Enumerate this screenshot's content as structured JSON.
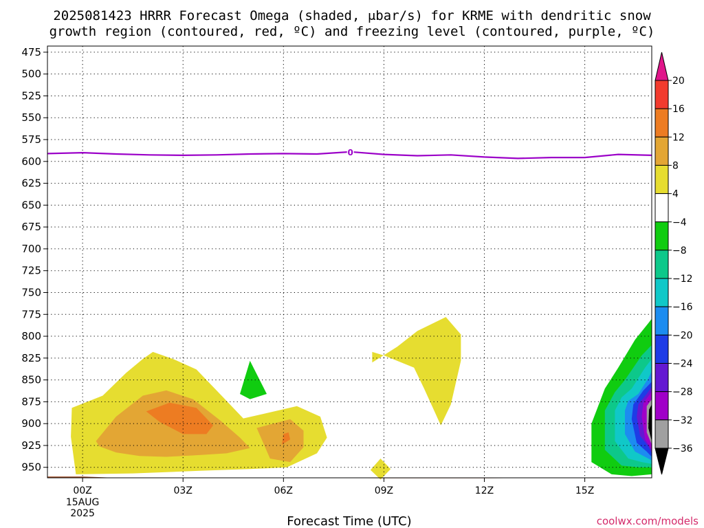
{
  "title": {
    "line1": "2025081423 HRRR Forecast Omega (shaded, μbar/s) for KRME with dendritic snow",
    "line2": "growth region (contoured, red, ºC) and freezing level (contoured, purple, ºC)"
  },
  "credit": "coolwx.com/models",
  "chart_data": {
    "type": "heatmap",
    "xlabel": "Forecast Time (UTC)",
    "ylabel": "",
    "x_range_hours": [
      -1.05,
      17
    ],
    "y_range_hPa": [
      468,
      962
    ],
    "y_axis": "pressure, inverted",
    "grid": true,
    "x_ticks": [
      {
        "hour": 0,
        "label": "00Z",
        "sub": [
          "15AUG",
          "2025"
        ]
      },
      {
        "hour": 3,
        "label": "03Z"
      },
      {
        "hour": 6,
        "label": "06Z"
      },
      {
        "hour": 9,
        "label": "09Z"
      },
      {
        "hour": 12,
        "label": "12Z"
      },
      {
        "hour": 15,
        "label": "15Z"
      }
    ],
    "y_ticks": [
      475,
      500,
      525,
      550,
      575,
      600,
      625,
      650,
      675,
      700,
      725,
      750,
      775,
      800,
      825,
      850,
      875,
      900,
      925,
      950
    ],
    "colorbar": {
      "unit": "μbar/s",
      "labels": [
        "20",
        "16",
        "12",
        "8",
        "4",
        "−4",
        "−8",
        "−12",
        "−16",
        "−20",
        "−24",
        "−28",
        "−32",
        "−36"
      ],
      "colors": {
        "above_20": "#e0168a",
        "16_20": "#f23b2e",
        "12_16": "#ed7c22",
        "8_12": "#e3a634",
        "4_8": "#e6dd30",
        "-4_4": "#ffffff",
        "-8_-4": "#10cc10",
        "-12_-8": "#0dc88a",
        "-16_-12": "#10c8c8",
        "-20_-16": "#1c8cf0",
        "-24_-20": "#1e3ce6",
        "-28_-24": "#6418d2",
        "-32_-28": "#a000c8",
        "-36_-32": "#a0a0a0",
        "below_-36": "#000000"
      }
    },
    "freezing_level": {
      "label": "0",
      "color": "#9b00c8",
      "hour": [
        -1.05,
        0,
        1,
        2,
        3,
        4,
        5,
        6,
        7,
        8,
        9,
        10,
        11,
        12,
        13,
        14,
        15,
        16,
        17
      ],
      "hPa": [
        591,
        590,
        591.5,
        592.5,
        593,
        592.5,
        591.5,
        591,
        591.5,
        589,
        592,
        593.5,
        592.5,
        595,
        596.5,
        595.5,
        595.5,
        592,
        593
      ]
    },
    "omega_regions": [
      {
        "band": "4_8",
        "hour": [
          -0.32,
          0.6,
          1.3,
          1.8,
          2.1,
          2.7,
          3.4,
          4.2,
          4.8,
          5.5,
          6.4,
          7.1,
          7.3,
          7.0,
          6.1,
          5.0,
          3.5,
          1.5,
          -0.2,
          -0.35
        ],
        "hPa": [
          882,
          868,
          842,
          826,
          818,
          826,
          838,
          870,
          894,
          888,
          880,
          892,
          916,
          934,
          950,
          952,
          954,
          957,
          958,
          915
        ]
      },
      {
        "band": "8_12",
        "hour": [
          0.4,
          1.0,
          1.8,
          2.5,
          3.3,
          4.1,
          4.7,
          5.0,
          4.3,
          3.5,
          2.5,
          1.7,
          1.0,
          0.5
        ],
        "hPa": [
          920,
          892,
          868,
          862,
          872,
          896,
          916,
          928,
          934,
          936,
          938,
          937,
          933,
          926
        ]
      },
      {
        "band": "12_16",
        "hour": [
          1.9,
          2.6,
          3.4,
          3.9,
          3.7,
          3.0,
          2.3
        ],
        "hPa": [
          886,
          876,
          882,
          902,
          912,
          912,
          898
        ]
      },
      {
        "band": "8_12",
        "hour": [
          5.2,
          6.2,
          6.6,
          6.6,
          6.2,
          5.6
        ],
        "hPa": [
          905,
          895,
          908,
          927,
          944,
          940
        ]
      },
      {
        "band": "12_16",
        "hour": [
          6.0,
          6.15,
          6.2,
          5.95
        ],
        "hPa": [
          912,
          910,
          918,
          924
        ]
      },
      {
        "band": "4_8",
        "hour": [
          8.65,
          9.4,
          10.0,
          10.85,
          11.3,
          11.3,
          11.0,
          10.7,
          10.2,
          9.9,
          9.0,
          8.65
        ],
        "hPa": [
          830,
          812,
          794,
          778,
          798,
          828,
          878,
          902,
          860,
          836,
          822,
          818
        ]
      },
      {
        "band": "4_8",
        "hour": [
          8.6,
          8.9,
          9.2,
          8.9
        ],
        "hPa": [
          953,
          940,
          952,
          964
        ]
      },
      {
        "band": "-8_-4",
        "hour": [
          4.7,
          5.0,
          5.5,
          5.0
        ],
        "hPa": [
          866,
          828,
          866,
          872
        ]
      },
      {
        "band": "-8_-4",
        "hour": [
          16.0,
          16.5,
          16.9,
          17,
          17,
          16.4,
          15.8,
          15.2,
          15.2,
          15.6
        ],
        "hPa": [
          836,
          804,
          785,
          780,
          958,
          960,
          958,
          944,
          900,
          860
        ]
      },
      {
        "band": "-12_-8",
        "hour": [
          16.2,
          16.7,
          17,
          17,
          16.6,
          16.1,
          15.6,
          15.6,
          15.9
        ],
        "hPa": [
          850,
          822,
          810,
          950,
          950,
          948,
          930,
          885,
          864
        ]
      },
      {
        "band": "-16_-12",
        "hour": [
          16.4,
          16.8,
          17,
          17,
          16.7,
          16.3,
          15.9,
          15.9,
          16.1
        ],
        "hPa": [
          860,
          836,
          826,
          946,
          944,
          940,
          920,
          885,
          870
        ]
      },
      {
        "band": "-20_-16",
        "hour": [
          16.6,
          16.9,
          17,
          17,
          16.8,
          16.5,
          16.2,
          16.2,
          16.3
        ],
        "hPa": [
          866,
          848,
          840,
          942,
          938,
          932,
          912,
          885,
          874
        ]
      },
      {
        "band": "-24_-20",
        "hour": [
          16.75,
          17,
          17,
          16.85,
          16.55,
          16.4,
          16.45
        ],
        "hPa": [
          862,
          852,
          938,
          932,
          922,
          895,
          878
        ]
      },
      {
        "band": "-28_-24",
        "hour": [
          16.85,
          17,
          17,
          16.9,
          16.65,
          16.55,
          16.6
        ],
        "hPa": [
          866,
          858,
          934,
          926,
          914,
          892,
          878
        ]
      },
      {
        "band": "-32_-28",
        "hour": [
          16.95,
          17,
          17,
          16.8,
          16.7,
          16.75
        ],
        "hPa": [
          866,
          862,
          930,
          918,
          892,
          876
        ]
      },
      {
        "band": "-36_-32",
        "hour": [
          16.85,
          17,
          17,
          16.85
        ],
        "hPa": [
          880,
          872,
          924,
          910
        ]
      },
      {
        "band": "below_-36",
        "hour": [
          16.92,
          17,
          17,
          16.9
        ],
        "hPa": [
          884,
          878,
          920,
          905
        ]
      }
    ],
    "ground": {
      "color": "#a0522d",
      "hour": [
        -1.05,
        0,
        1,
        3,
        6,
        9,
        12,
        15,
        17
      ],
      "hPa": [
        960.5,
        960.5,
        962,
        962,
        962,
        962.5,
        962.5,
        962,
        962
      ]
    }
  }
}
